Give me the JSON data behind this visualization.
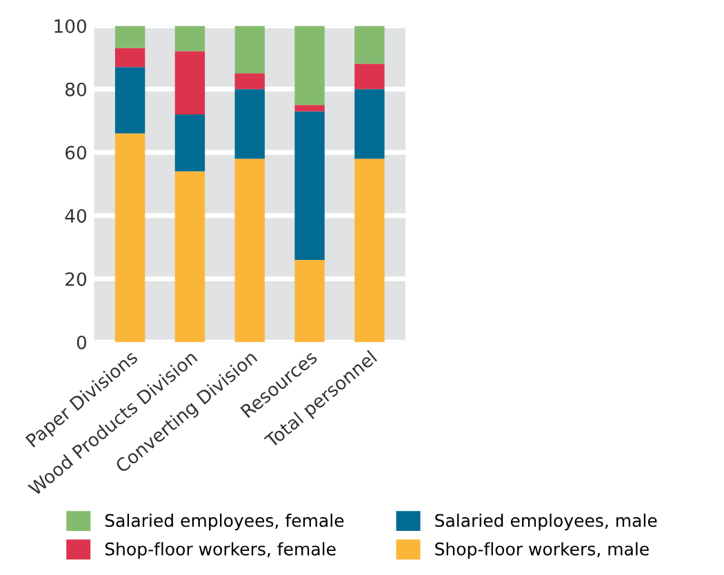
{
  "chart_data": {
    "type": "bar",
    "stacked": true,
    "categories": [
      "Paper Divisions",
      "Wood Products Division",
      "Converting Division",
      "Resources",
      "Total personnel"
    ],
    "series": [
      {
        "name": "Shop-floor workers, male",
        "color": "#fbb63a",
        "values": [
          66,
          54,
          58,
          26,
          58
        ]
      },
      {
        "name": "Salaried employees, male",
        "color": "#006c93",
        "values": [
          21,
          18,
          22,
          47,
          22
        ]
      },
      {
        "name": "Shop-floor workers, female",
        "color": "#dc344d",
        "values": [
          6,
          20,
          5,
          2,
          8
        ]
      },
      {
        "name": "Salaried employees, female",
        "color": "#85bb6f",
        "values": [
          7,
          8,
          15,
          25,
          12
        ]
      }
    ],
    "ylim": [
      0,
      100
    ],
    "yticks": [
      0,
      20,
      40,
      60,
      80,
      100
    ],
    "grid": "y",
    "legend": "bottom"
  }
}
